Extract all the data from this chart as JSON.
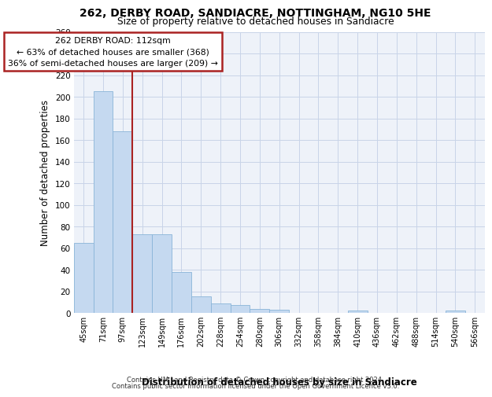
{
  "title_line1": "262, DERBY ROAD, SANDIACRE, NOTTINGHAM, NG10 5HE",
  "title_line2": "Size of property relative to detached houses in Sandiacre",
  "xlabel": "Distribution of detached houses by size in Sandiacre",
  "ylabel": "Number of detached properties",
  "bar_color": "#c5d9f0",
  "bar_edge_color": "#8ab4d8",
  "categories": [
    "45sqm",
    "71sqm",
    "97sqm",
    "123sqm",
    "149sqm",
    "176sqm",
    "202sqm",
    "228sqm",
    "254sqm",
    "280sqm",
    "306sqm",
    "332sqm",
    "358sqm",
    "384sqm",
    "410sqm",
    "436sqm",
    "462sqm",
    "488sqm",
    "514sqm",
    "540sqm",
    "566sqm"
  ],
  "values": [
    65,
    205,
    168,
    73,
    73,
    38,
    15,
    9,
    7,
    4,
    3,
    0,
    0,
    0,
    2,
    0,
    0,
    0,
    0,
    2,
    0
  ],
  "ylim": [
    0,
    260
  ],
  "yticks": [
    0,
    20,
    40,
    60,
    80,
    100,
    120,
    140,
    160,
    180,
    200,
    220,
    240,
    260
  ],
  "property_label": "262 DERBY ROAD: 112sqm",
  "annotation_line1": "← 63% of detached houses are smaller (368)",
  "annotation_line2": "36% of semi-detached houses are larger (209) →",
  "vline_color": "#aa2222",
  "box_edgecolor": "#aa2222",
  "background_color": "#eef2f9",
  "grid_color": "#c8d4e8",
  "footer_line1": "Contains HM Land Registry data © Crown copyright and database right 2024.",
  "footer_line2": "Contains public sector information licensed under the Open Government Licence v3.0."
}
